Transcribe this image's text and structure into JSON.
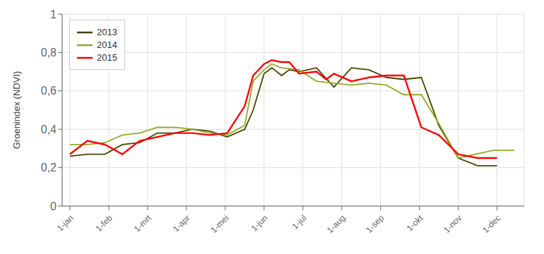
{
  "chart_data": {
    "type": "line",
    "ylabel": "Groenindex (NDVI)",
    "xlim": [
      -0.2,
      11.7
    ],
    "xticks": [
      {
        "value": 0,
        "label": "1-jan"
      },
      {
        "value": 1,
        "label": "1-feb"
      },
      {
        "value": 2,
        "label": "1-mrt"
      },
      {
        "value": 3,
        "label": "1-apr"
      },
      {
        "value": 4,
        "label": "1-mei"
      },
      {
        "value": 5,
        "label": "1-jun"
      },
      {
        "value": 6,
        "label": "1-jul"
      },
      {
        "value": 7,
        "label": "1-aug"
      },
      {
        "value": 8,
        "label": "1-sep"
      },
      {
        "value": 9,
        "label": "1-okt"
      },
      {
        "value": 10,
        "label": "1-nov"
      },
      {
        "value": 11,
        "label": "1-dec"
      }
    ],
    "ylim": [
      0,
      1.0
    ],
    "yticks": [
      0,
      {
        "value": 0.2,
        "label": "0,2"
      },
      {
        "value": 0.4,
        "label": "0,4"
      },
      {
        "value": 0.6,
        "label": "0,6"
      },
      {
        "value": 0.8,
        "label": "0,8"
      },
      1
    ],
    "grid": true,
    "legend": "upper left",
    "series": [
      {
        "name": "2013",
        "color": "#4a4200",
        "x": [
          0,
          0.45,
          0.9,
          1.35,
          1.8,
          2.25,
          2.7,
          3.15,
          3.6,
          4.05,
          4.5,
          4.72,
          5.0,
          5.2,
          5.45,
          5.65,
          5.9,
          6.35,
          6.8,
          7.25,
          7.7,
          8.15,
          8.6,
          9.05,
          9.5,
          10.0,
          10.5,
          11.0
        ],
        "values": [
          0.26,
          0.27,
          0.27,
          0.32,
          0.33,
          0.38,
          0.38,
          0.4,
          0.39,
          0.36,
          0.4,
          0.5,
          0.69,
          0.72,
          0.68,
          0.71,
          0.7,
          0.72,
          0.62,
          0.72,
          0.71,
          0.67,
          0.66,
          0.67,
          0.42,
          0.25,
          0.21,
          0.21
        ]
      },
      {
        "name": "2014",
        "color": "#8faa2a",
        "x": [
          0,
          0.45,
          0.9,
          1.35,
          1.8,
          2.25,
          2.7,
          3.15,
          3.6,
          4.05,
          4.5,
          4.72,
          5.0,
          5.2,
          5.45,
          5.9,
          6.35,
          6.8,
          7.25,
          7.7,
          8.15,
          8.6,
          9.05,
          9.5,
          10.0,
          10.9,
          11.45
        ],
        "values": [
          0.32,
          0.32,
          0.33,
          0.37,
          0.38,
          0.41,
          0.41,
          0.4,
          0.38,
          0.37,
          0.42,
          0.65,
          0.71,
          0.74,
          0.72,
          0.71,
          0.65,
          0.64,
          0.63,
          0.64,
          0.63,
          0.58,
          0.58,
          0.43,
          0.25,
          0.29,
          0.29
        ]
      },
      {
        "name": "2015",
        "color": "#ff0000",
        "x": [
          0,
          0.45,
          0.9,
          1.35,
          1.8,
          2.25,
          2.7,
          3.15,
          3.6,
          4.05,
          4.5,
          4.72,
          5.0,
          5.2,
          5.45,
          5.65,
          5.9,
          6.35,
          6.6,
          6.8,
          7.25,
          7.7,
          8.15,
          8.6,
          9.05,
          9.5,
          10.0,
          10.5,
          11.0
        ],
        "values": [
          0.27,
          0.34,
          0.32,
          0.27,
          0.34,
          0.36,
          0.38,
          0.38,
          0.37,
          0.38,
          0.52,
          0.68,
          0.74,
          0.76,
          0.75,
          0.75,
          0.69,
          0.7,
          0.66,
          0.69,
          0.65,
          0.67,
          0.68,
          0.68,
          0.41,
          0.37,
          0.27,
          0.25,
          0.25
        ]
      }
    ]
  }
}
